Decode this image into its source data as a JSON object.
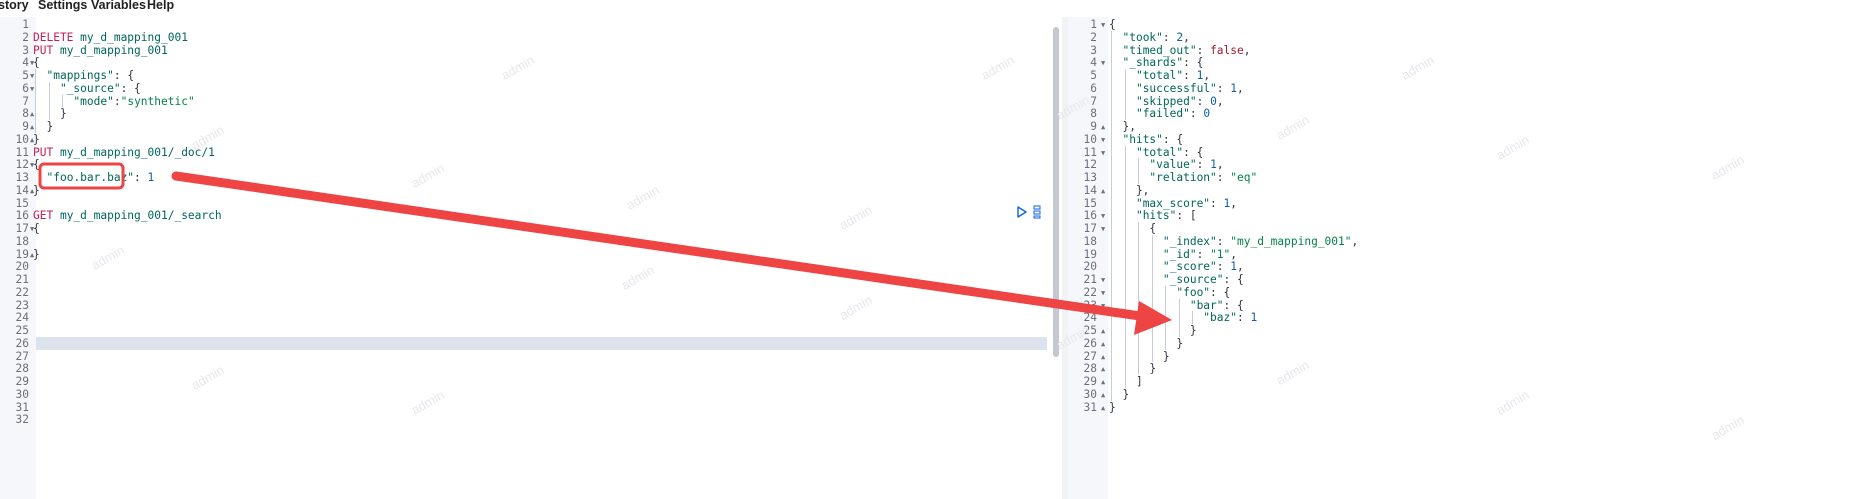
{
  "menu": {
    "items": [
      "story",
      "Settings",
      "Variables",
      "Help"
    ]
  },
  "left_editor": {
    "line_count": 32,
    "folds": {
      "4": "open",
      "5": "open",
      "6": "open",
      "8": "close",
      "9": "close",
      "10": "close",
      "12": "open",
      "14": "close",
      "17": "open",
      "19": "close"
    },
    "current_line": 26,
    "lines": [
      [],
      [
        {
          "t": "DELETE ",
          "c": "k"
        },
        {
          "t": "my_d_mapping_001",
          "c": "u"
        }
      ],
      [
        {
          "t": "PUT ",
          "c": "k"
        },
        {
          "t": "my_d_mapping_001",
          "c": "u"
        }
      ],
      [
        {
          "t": "{",
          "c": "p"
        }
      ],
      [
        {
          "t": "  ",
          "c": "p"
        },
        {
          "t": "\"mappings\"",
          "c": "pk"
        },
        {
          "t": ": {",
          "c": "p"
        }
      ],
      [
        {
          "t": "    ",
          "c": "p"
        },
        {
          "t": "\"_source\"",
          "c": "pk"
        },
        {
          "t": ": {",
          "c": "p"
        }
      ],
      [
        {
          "t": "      ",
          "c": "p"
        },
        {
          "t": "\"mode\"",
          "c": "pk"
        },
        {
          "t": ":",
          "c": "p"
        },
        {
          "t": "\"synthetic\"",
          "c": "s"
        }
      ],
      [
        {
          "t": "    }",
          "c": "p"
        }
      ],
      [
        {
          "t": "  }",
          "c": "p"
        }
      ],
      [
        {
          "t": "}",
          "c": "p"
        }
      ],
      [
        {
          "t": "PUT ",
          "c": "k"
        },
        {
          "t": "my_d_mapping_001/_doc/1",
          "c": "u"
        }
      ],
      [
        {
          "t": "{",
          "c": "p"
        }
      ],
      [
        {
          "t": "  ",
          "c": "p"
        },
        {
          "t": "\"foo.bar.baz\"",
          "c": "pk"
        },
        {
          "t": ": ",
          "c": "p"
        },
        {
          "t": "1",
          "c": "n"
        }
      ],
      [
        {
          "t": "}",
          "c": "p"
        }
      ],
      [],
      [
        {
          "t": "GET ",
          "c": "k"
        },
        {
          "t": "my_d_mapping_001/_search",
          "c": "u"
        }
      ],
      [
        {
          "t": "{",
          "c": "p"
        }
      ],
      [],
      [
        {
          "t": "}",
          "c": "p"
        }
      ],
      [],
      [],
      [],
      [],
      [],
      [],
      [],
      [],
      [],
      [],
      [],
      [],
      []
    ]
  },
  "right_editor": {
    "line_count": 31,
    "folds": {
      "1": "open",
      "4": "open",
      "9": "close",
      "10": "open",
      "11": "open",
      "14": "close",
      "16": "open",
      "17": "open",
      "21": "open",
      "22": "open",
      "23": "open",
      "25": "close",
      "26": "close",
      "27": "close",
      "28": "close",
      "29": "close",
      "30": "close",
      "31": "close"
    },
    "lines": [
      [
        {
          "t": "{",
          "c": "p"
        }
      ],
      [
        {
          "t": "  ",
          "c": "p"
        },
        {
          "t": "\"took\"",
          "c": "pk"
        },
        {
          "t": ": ",
          "c": "p"
        },
        {
          "t": "2",
          "c": "n"
        },
        {
          "t": ",",
          "c": "p"
        }
      ],
      [
        {
          "t": "  ",
          "c": "p"
        },
        {
          "t": "\"timed_out\"",
          "c": "pk"
        },
        {
          "t": ": ",
          "c": "p"
        },
        {
          "t": "false",
          "c": "b"
        },
        {
          "t": ",",
          "c": "p"
        }
      ],
      [
        {
          "t": "  ",
          "c": "p"
        },
        {
          "t": "\"_shards\"",
          "c": "pk"
        },
        {
          "t": ": {",
          "c": "p"
        }
      ],
      [
        {
          "t": "    ",
          "c": "p"
        },
        {
          "t": "\"total\"",
          "c": "pk"
        },
        {
          "t": ": ",
          "c": "p"
        },
        {
          "t": "1",
          "c": "n"
        },
        {
          "t": ",",
          "c": "p"
        }
      ],
      [
        {
          "t": "    ",
          "c": "p"
        },
        {
          "t": "\"successful\"",
          "c": "pk"
        },
        {
          "t": ": ",
          "c": "p"
        },
        {
          "t": "1",
          "c": "n"
        },
        {
          "t": ",",
          "c": "p"
        }
      ],
      [
        {
          "t": "    ",
          "c": "p"
        },
        {
          "t": "\"skipped\"",
          "c": "pk"
        },
        {
          "t": ": ",
          "c": "p"
        },
        {
          "t": "0",
          "c": "n"
        },
        {
          "t": ",",
          "c": "p"
        }
      ],
      [
        {
          "t": "    ",
          "c": "p"
        },
        {
          "t": "\"failed\"",
          "c": "pk"
        },
        {
          "t": ": ",
          "c": "p"
        },
        {
          "t": "0",
          "c": "n"
        }
      ],
      [
        {
          "t": "  },",
          "c": "p"
        }
      ],
      [
        {
          "t": "  ",
          "c": "p"
        },
        {
          "t": "\"hits\"",
          "c": "pk"
        },
        {
          "t": ": {",
          "c": "p"
        }
      ],
      [
        {
          "t": "    ",
          "c": "p"
        },
        {
          "t": "\"total\"",
          "c": "pk"
        },
        {
          "t": ": {",
          "c": "p"
        }
      ],
      [
        {
          "t": "      ",
          "c": "p"
        },
        {
          "t": "\"value\"",
          "c": "pk"
        },
        {
          "t": ": ",
          "c": "p"
        },
        {
          "t": "1",
          "c": "n"
        },
        {
          "t": ",",
          "c": "p"
        }
      ],
      [
        {
          "t": "      ",
          "c": "p"
        },
        {
          "t": "\"relation\"",
          "c": "pk"
        },
        {
          "t": ": ",
          "c": "p"
        },
        {
          "t": "\"eq\"",
          "c": "s"
        }
      ],
      [
        {
          "t": "    },",
          "c": "p"
        }
      ],
      [
        {
          "t": "    ",
          "c": "p"
        },
        {
          "t": "\"max_score\"",
          "c": "pk"
        },
        {
          "t": ": ",
          "c": "p"
        },
        {
          "t": "1",
          "c": "n"
        },
        {
          "t": ",",
          "c": "p"
        }
      ],
      [
        {
          "t": "    ",
          "c": "p"
        },
        {
          "t": "\"hits\"",
          "c": "pk"
        },
        {
          "t": ": [",
          "c": "p"
        }
      ],
      [
        {
          "t": "      {",
          "c": "p"
        }
      ],
      [
        {
          "t": "        ",
          "c": "p"
        },
        {
          "t": "\"_index\"",
          "c": "pk"
        },
        {
          "t": ": ",
          "c": "p"
        },
        {
          "t": "\"my_d_mapping_001\"",
          "c": "s"
        },
        {
          "t": ",",
          "c": "p"
        }
      ],
      [
        {
          "t": "        ",
          "c": "p"
        },
        {
          "t": "\"_id\"",
          "c": "pk"
        },
        {
          "t": ": ",
          "c": "p"
        },
        {
          "t": "\"1\"",
          "c": "s"
        },
        {
          "t": ",",
          "c": "p"
        }
      ],
      [
        {
          "t": "        ",
          "c": "p"
        },
        {
          "t": "\"_score\"",
          "c": "pk"
        },
        {
          "t": ": ",
          "c": "p"
        },
        {
          "t": "1",
          "c": "n"
        },
        {
          "t": ",",
          "c": "p"
        }
      ],
      [
        {
          "t": "        ",
          "c": "p"
        },
        {
          "t": "\"_source\"",
          "c": "pk"
        },
        {
          "t": ": {",
          "c": "p"
        }
      ],
      [
        {
          "t": "          ",
          "c": "p"
        },
        {
          "t": "\"foo\"",
          "c": "pk"
        },
        {
          "t": ": {",
          "c": "p"
        }
      ],
      [
        {
          "t": "            ",
          "c": "p"
        },
        {
          "t": "\"bar\"",
          "c": "pk"
        },
        {
          "t": ": {",
          "c": "p"
        }
      ],
      [
        {
          "t": "              ",
          "c": "p"
        },
        {
          "t": "\"baz\"",
          "c": "pk"
        },
        {
          "t": ": ",
          "c": "p"
        },
        {
          "t": "1",
          "c": "n"
        }
      ],
      [
        {
          "t": "            }",
          "c": "p"
        }
      ],
      [
        {
          "t": "          }",
          "c": "p"
        }
      ],
      [
        {
          "t": "        }",
          "c": "p"
        }
      ],
      [
        {
          "t": "      }",
          "c": "p"
        }
      ],
      [
        {
          "t": "    ]",
          "c": "p"
        }
      ],
      [
        {
          "t": "  }",
          "c": "p"
        }
      ],
      [
        {
          "t": "}",
          "c": "p"
        }
      ]
    ]
  },
  "watermark_text": "admin",
  "annotation": {
    "box_color": "#ef4444",
    "arrow_color": "#ef4444"
  },
  "icons": {
    "run": "play-icon",
    "menu": "wrench-icon"
  }
}
